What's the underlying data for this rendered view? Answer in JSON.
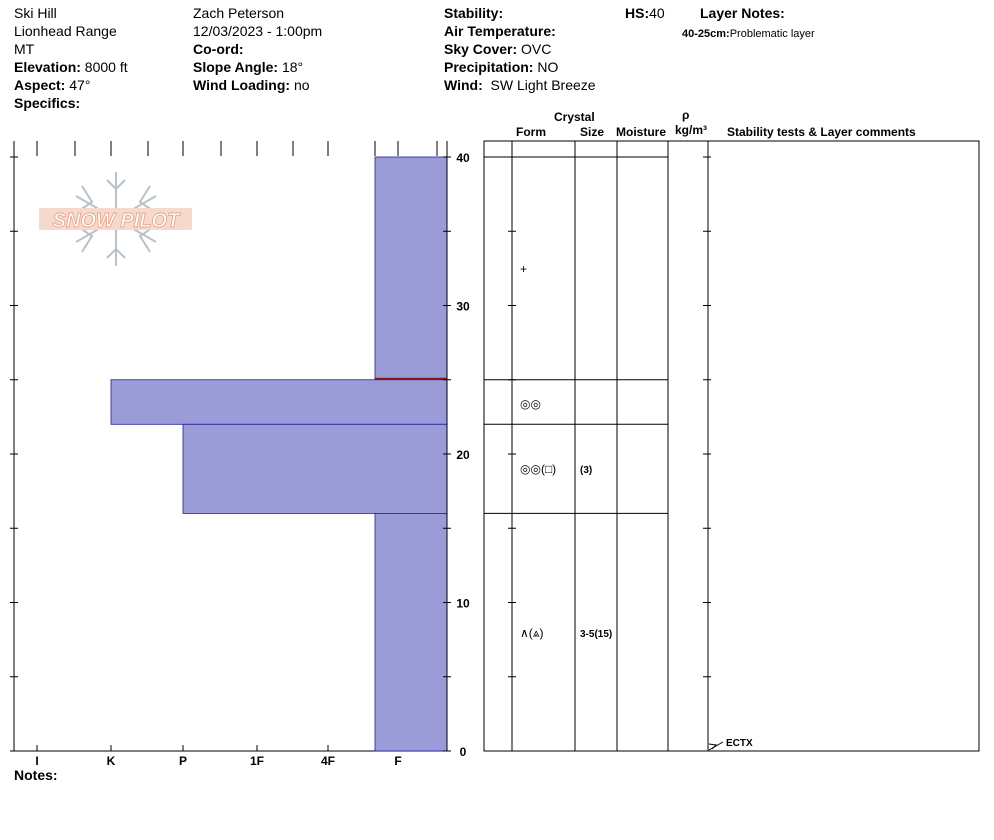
{
  "header": {
    "location": "Ski Hill",
    "range": "Lionhead Range",
    "state": "MT",
    "elevation_label": "Elevation:",
    "elevation": "8000 ft",
    "aspect_label": "Aspect:",
    "aspect": "47°",
    "specifics_label": "Specifics:",
    "observer": "Zach Peterson",
    "datetime": "12/03/2023 - 1:00pm",
    "coord_label": "Co-ord:",
    "slope_label": "Slope Angle:",
    "slope": "18°",
    "wind_loading_label": "Wind Loading:",
    "wind_loading": "no",
    "stability_label": "Stability:",
    "air_temp_label": "Air Temperature:",
    "sky_label": "Sky Cover:",
    "sky": "OVC",
    "precip_label": "Precipitation:",
    "precip": "NO",
    "wind_label": "Wind:",
    "wind": "SW Light Breeze",
    "hs_label": "HS:",
    "hs": "40",
    "layer_notes_title": "Layer Notes:",
    "layer_note_range": "40-25cm:",
    "layer_note_text": "Problematic layer"
  },
  "logo": {
    "text": "SNOW PILOT",
    "color": "#e8a58c"
  },
  "columns": {
    "crystal": "Crystal",
    "form": "Form",
    "size": "Size",
    "moisture": "Moisture",
    "rho": "ρ",
    "density_unit": "kg/m³",
    "comments": "Stability tests & Layer comments"
  },
  "notes_label": "Notes:",
  "chart_data": {
    "type": "bar",
    "orientation": "horizontal",
    "x_axis_categories": [
      "I",
      "K",
      "P",
      "1F",
      "4F",
      "F"
    ],
    "y_range": [
      0,
      40
    ],
    "y_ticks": [
      0,
      10,
      20,
      30,
      40
    ],
    "bar_color": "#9b9bd7",
    "layers": [
      {
        "top": 40,
        "bottom": 25,
        "hardness": "F",
        "form": "+",
        "size": "",
        "boundary_color": "#8b1a1a"
      },
      {
        "top": 25,
        "bottom": 22,
        "hardness": "K",
        "form": "◎◎",
        "size": ""
      },
      {
        "top": 22,
        "bottom": 16,
        "hardness": "P",
        "form": "◎◎(□)",
        "size": "(3)"
      },
      {
        "top": 16,
        "bottom": 0,
        "hardness": "F",
        "form": "∧(⩓)",
        "size": "3-5(15)"
      }
    ],
    "stability_tests": [
      {
        "depth": 0,
        "label": "ECTX"
      }
    ]
  }
}
